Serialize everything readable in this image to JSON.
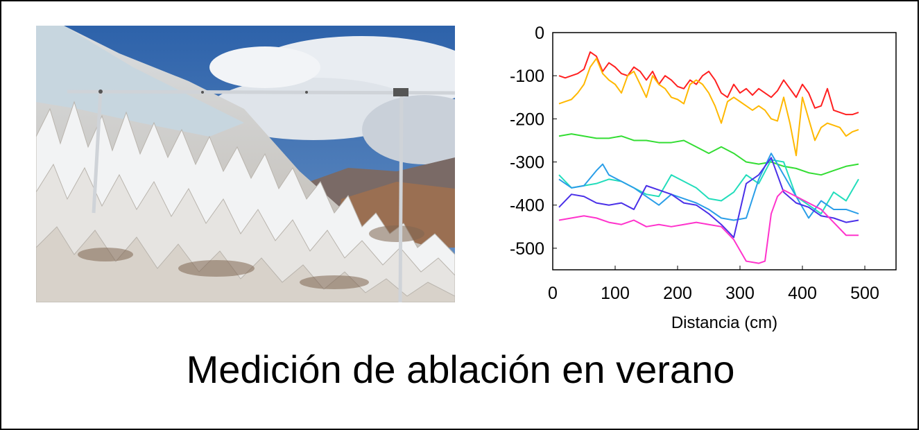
{
  "photo": {
    "description_icon": "glacier-penitentes-photo-icon",
    "colors": {
      "sky": "#3a6fb4",
      "cloud": "#e8ecf2",
      "ice": "#e9ecee",
      "rock": "#8c6a52",
      "pole": "#c9cdd2"
    }
  },
  "caption": "Medición de ablación en verano",
  "chart_data": {
    "type": "line",
    "xlabel": "Distancia (cm)",
    "ylabel": "",
    "xlim": [
      0,
      550
    ],
    "ylim": [
      -550,
      0
    ],
    "xticks": [
      0,
      100,
      200,
      300,
      400,
      500
    ],
    "yticks": [
      0,
      -100,
      -200,
      -300,
      -400,
      -500
    ],
    "xtick_labels": [
      "0",
      "100",
      "200",
      "300",
      "400",
      "500"
    ],
    "ytick_labels": [
      "0",
      "-100",
      "-200",
      "-300",
      "-400",
      "-500"
    ],
    "grid": false,
    "series": [
      {
        "color": "#ff2020",
        "x": [
          10,
          20,
          30,
          40,
          50,
          60,
          70,
          80,
          90,
          100,
          110,
          120,
          130,
          140,
          150,
          160,
          170,
          180,
          190,
          200,
          210,
          220,
          230,
          240,
          250,
          260,
          270,
          280,
          290,
          300,
          310,
          320,
          330,
          340,
          350,
          360,
          370,
          380,
          390,
          400,
          410,
          420,
          430,
          440,
          450,
          460,
          470,
          480,
          490
        ],
        "y": [
          -100,
          -105,
          -100,
          -95,
          -85,
          -45,
          -55,
          -90,
          -70,
          -80,
          -95,
          -100,
          -80,
          -90,
          -110,
          -90,
          -120,
          -100,
          -110,
          -125,
          -130,
          -110,
          -120,
          -100,
          -90,
          -110,
          -140,
          -150,
          -120,
          -140,
          -130,
          -145,
          -130,
          -140,
          -150,
          -135,
          -110,
          -130,
          -150,
          -120,
          -140,
          -175,
          -170,
          -130,
          -180,
          -185,
          -190,
          -190,
          -185
        ]
      },
      {
        "color": "#ffb800",
        "x": [
          10,
          20,
          30,
          40,
          50,
          60,
          70,
          80,
          90,
          100,
          110,
          120,
          130,
          140,
          150,
          160,
          170,
          180,
          190,
          200,
          210,
          220,
          230,
          240,
          250,
          260,
          270,
          280,
          290,
          300,
          310,
          320,
          330,
          340,
          350,
          360,
          370,
          380,
          390,
          400,
          410,
          420,
          430,
          440,
          450,
          460,
          470,
          480,
          490
        ],
        "y": [
          -165,
          -160,
          -155,
          -140,
          -120,
          -80,
          -60,
          -95,
          -110,
          -120,
          -140,
          -100,
          -90,
          -120,
          -150,
          -100,
          -120,
          -130,
          -150,
          -155,
          -165,
          -120,
          -110,
          -120,
          -140,
          -170,
          -210,
          -160,
          -150,
          -160,
          -170,
          -180,
          -170,
          -180,
          -200,
          -205,
          -150,
          -210,
          -285,
          -150,
          -200,
          -250,
          -220,
          -210,
          -215,
          -220,
          -240,
          -230,
          -225
        ]
      },
      {
        "color": "#33dd33",
        "x": [
          10,
          30,
          50,
          70,
          90,
          110,
          130,
          150,
          170,
          190,
          210,
          230,
          250,
          270,
          290,
          310,
          330,
          350,
          370,
          390,
          410,
          430,
          450,
          470,
          490
        ],
        "y": [
          -240,
          -235,
          -240,
          -245,
          -245,
          -240,
          -250,
          -250,
          -255,
          -255,
          -250,
          -265,
          -280,
          -265,
          -280,
          -300,
          -305,
          -300,
          -310,
          -315,
          -325,
          -330,
          -320,
          -310,
          -305
        ]
      },
      {
        "color": "#22ddbb",
        "x": [
          10,
          30,
          50,
          70,
          90,
          110,
          130,
          150,
          170,
          190,
          210,
          230,
          250,
          270,
          290,
          310,
          330,
          350,
          370,
          390,
          410,
          430,
          450,
          470,
          490
        ],
        "y": [
          -330,
          -360,
          -355,
          -350,
          -340,
          -345,
          -360,
          -375,
          -380,
          -330,
          -345,
          -360,
          -385,
          -390,
          -370,
          -330,
          -350,
          -295,
          -300,
          -380,
          -400,
          -420,
          -370,
          -390,
          -340
        ]
      },
      {
        "color": "#2a9ee8",
        "x": [
          10,
          30,
          50,
          70,
          80,
          90,
          110,
          130,
          150,
          170,
          190,
          210,
          230,
          250,
          270,
          290,
          310,
          330,
          350,
          370,
          390,
          410,
          430,
          450,
          470,
          490
        ],
        "y": [
          -340,
          -360,
          -355,
          -320,
          -305,
          -330,
          -345,
          -360,
          -380,
          -400,
          -375,
          -385,
          -395,
          -410,
          -430,
          -435,
          -430,
          -340,
          -280,
          -330,
          -380,
          -430,
          -390,
          -410,
          -410,
          -420
        ]
      },
      {
        "color": "#4a30e8",
        "x": [
          10,
          30,
          50,
          70,
          90,
          110,
          130,
          150,
          170,
          190,
          210,
          230,
          250,
          270,
          290,
          310,
          330,
          350,
          370,
          390,
          410,
          430,
          450,
          470,
          490
        ],
        "y": [
          -405,
          -375,
          -380,
          -395,
          -400,
          -395,
          -410,
          -355,
          -365,
          -375,
          -395,
          -400,
          -420,
          -445,
          -475,
          -350,
          -330,
          -290,
          -370,
          -395,
          -405,
          -425,
          -430,
          -440,
          -435
        ]
      },
      {
        "color": "#ff33cc",
        "x": [
          10,
          30,
          50,
          70,
          90,
          110,
          130,
          150,
          170,
          190,
          210,
          230,
          250,
          270,
          290,
          310,
          330,
          340,
          350,
          360,
          370,
          390,
          410,
          430,
          450,
          470,
          490
        ],
        "y": [
          -435,
          -430,
          -425,
          -430,
          -440,
          -445,
          -435,
          -450,
          -445,
          -450,
          -445,
          -440,
          -445,
          -450,
          -480,
          -530,
          -535,
          -530,
          -420,
          -380,
          -365,
          -380,
          -395,
          -410,
          -440,
          -470,
          -470
        ]
      }
    ]
  }
}
